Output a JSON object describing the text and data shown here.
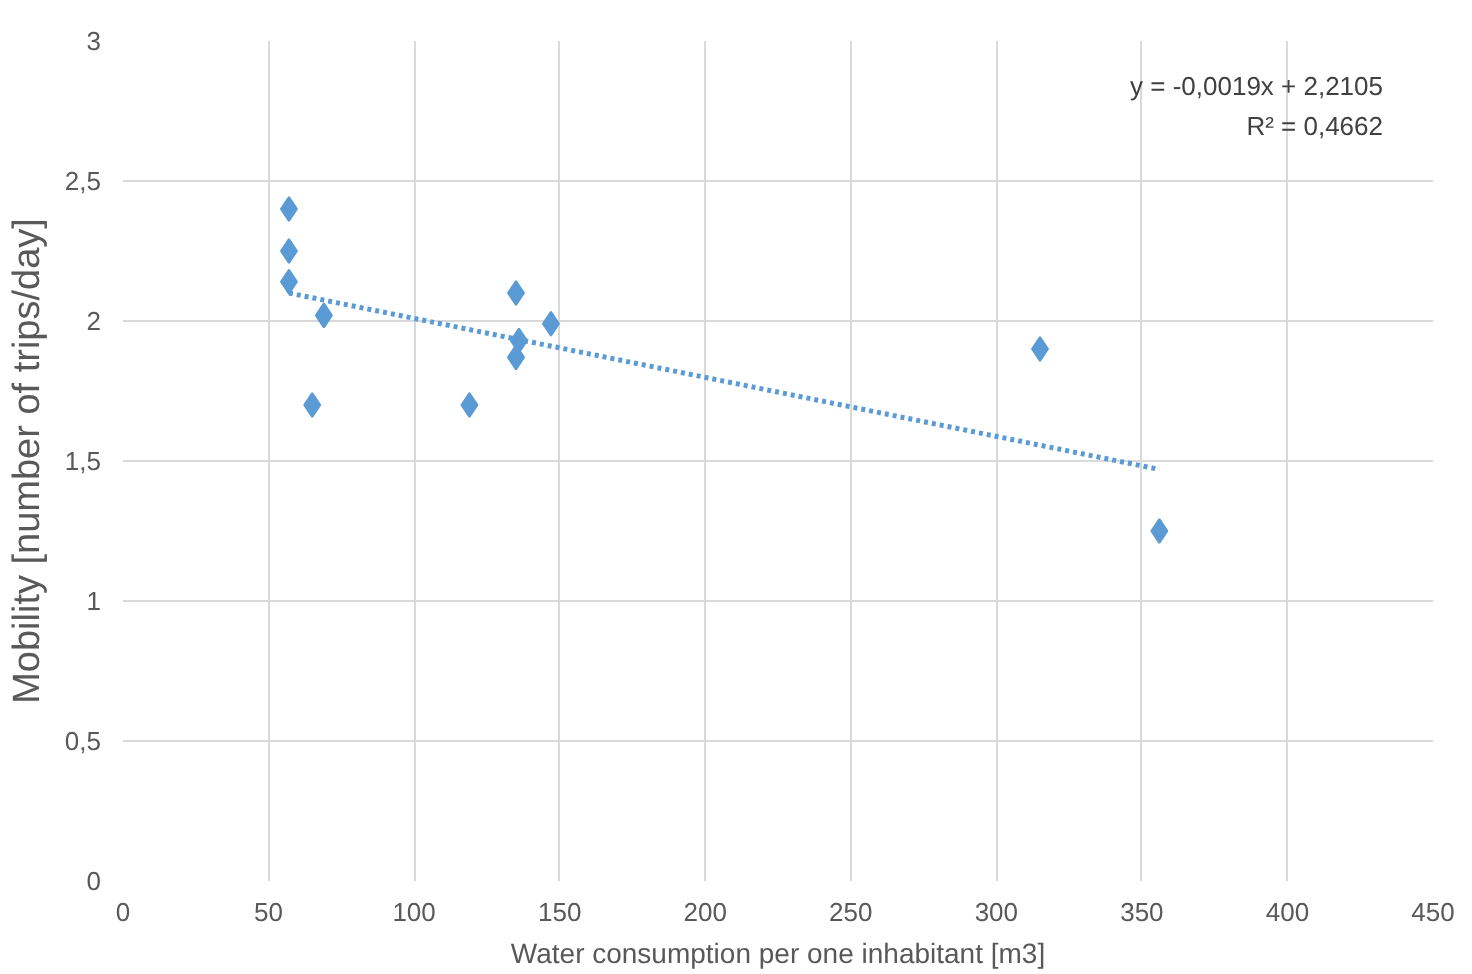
{
  "chart_data": {
    "type": "scatter",
    "xlabel": "Water consumption per one inhabitant [m3]",
    "ylabel": "Mobility [number of trips/day]",
    "xlim": [
      0,
      450
    ],
    "xticks": [
      0,
      50,
      100,
      150,
      200,
      250,
      300,
      350,
      400,
      450
    ],
    "ylim": [
      0,
      3
    ],
    "yticks": [
      0,
      {
        "value": 0.5,
        "label": "0,5"
      },
      1,
      {
        "value": 1.5,
        "label": "1,5"
      },
      2,
      {
        "value": 2.5,
        "label": "2,5"
      },
      3
    ],
    "grid": true,
    "marker": "diamond",
    "series": [
      {
        "color": "#5b9bd5",
        "x": [
          57,
          57,
          57,
          69,
          65,
          119,
          135,
          136,
          135,
          147,
          315,
          356
        ],
        "values": [
          2.4,
          2.25,
          2.14,
          2.02,
          1.7,
          1.7,
          2.1,
          1.93,
          1.87,
          1.99,
          1.9,
          1.25
        ]
      },
      {
        "type": "line",
        "color": "#5b9bd5",
        "marker": "none",
        "line_style": "dotted",
        "x": [
          57,
          356
        ],
        "values": [
          2.1,
          1.47
        ]
      }
    ],
    "annotations": [
      "y = -0,0019x + 2,2105",
      "R² = 0,4662"
    ]
  }
}
